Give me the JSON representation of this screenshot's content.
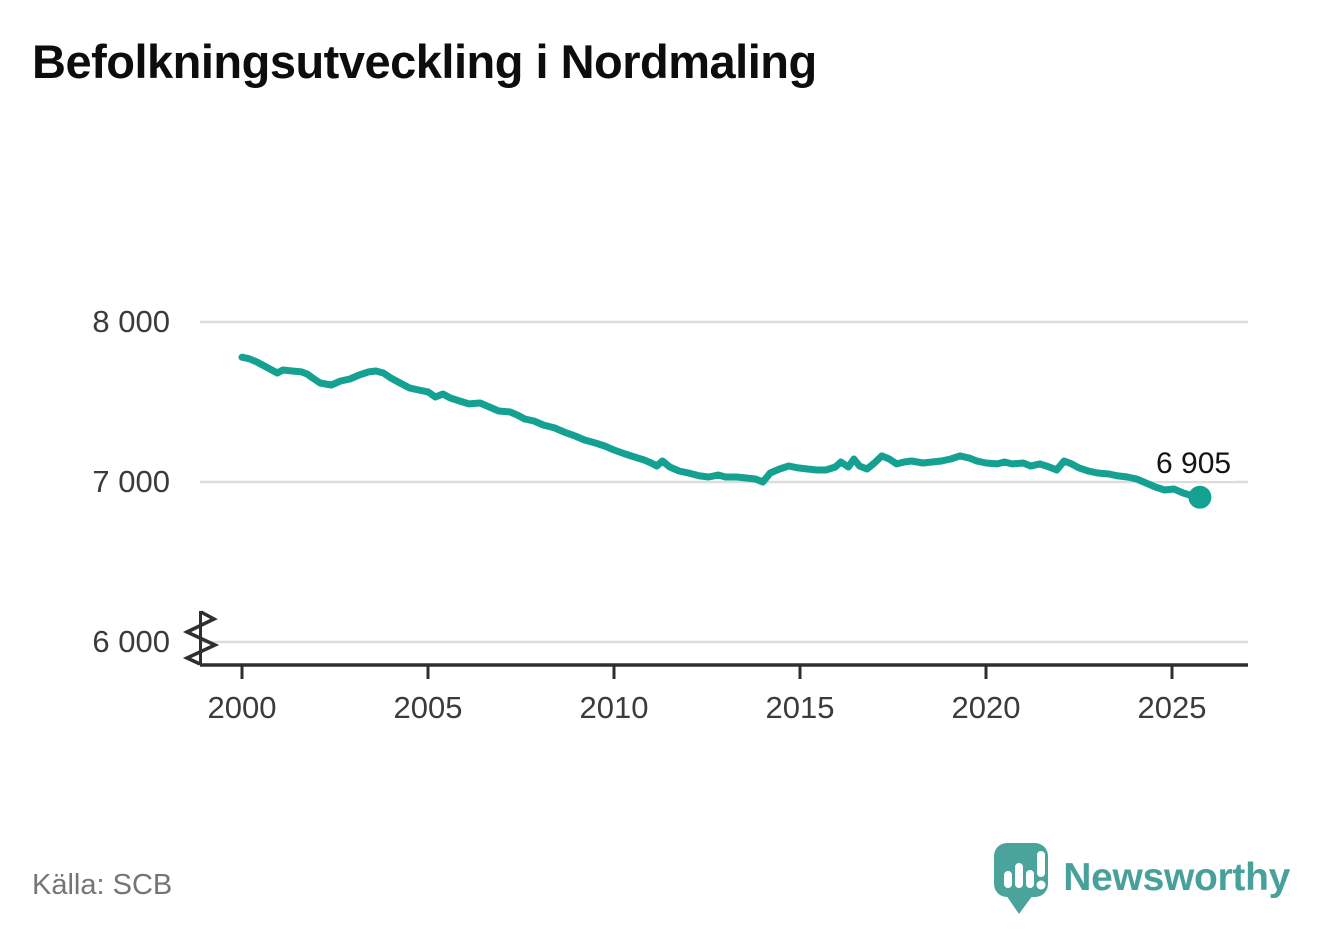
{
  "header": {
    "title": "Befolkningsutveckling i Nordmaling"
  },
  "footer": {
    "source": "Källa: SCB",
    "brand_name": "Newsworthy"
  },
  "annotation": {
    "last_value_label": "6 905"
  },
  "colors": {
    "line": "#14a192",
    "grid": "#dcdcdc",
    "axis": "#2f2f2f",
    "tick_label": "#3b3b3b",
    "source_text": "#757575",
    "brand": "#47a19a",
    "logo_bubble": "#4aa49b",
    "title_text": "#0d0d0d"
  },
  "chart_data": {
    "type": "line",
    "title": "Befolkningsutveckling i Nordmaling",
    "xlabel": "",
    "ylabel": "",
    "grid": "horizontal",
    "legend": "none",
    "axis_break_at_bottom": true,
    "xlim": [
      1998.9,
      2027.0
    ],
    "ylim_displayed": [
      6000,
      8000
    ],
    "x_ticks": [
      {
        "label": "2000",
        "year": 2000
      },
      {
        "label": "2005",
        "year": 2005
      },
      {
        "label": "2010",
        "year": 2010
      },
      {
        "label": "2015",
        "year": 2015
      },
      {
        "label": "2020",
        "year": 2020
      },
      {
        "label": "2025",
        "year": 2025
      }
    ],
    "y_ticks": [
      {
        "label": "8 000",
        "value": 8000
      },
      {
        "label": "7 000",
        "value": 7000
      },
      {
        "label": "6 000",
        "value": 6000
      }
    ],
    "series": [
      {
        "name": "Befolkning",
        "color": "#14a192",
        "end_value": 6905,
        "end_label": "6 905",
        "points": [
          [
            2000.0,
            7780
          ],
          [
            2000.2,
            7770
          ],
          [
            2000.4,
            7750
          ],
          [
            2000.75,
            7706
          ],
          [
            2000.95,
            7681
          ],
          [
            2001.1,
            7700
          ],
          [
            2001.35,
            7694
          ],
          [
            2001.6,
            7688
          ],
          [
            2001.75,
            7675
          ],
          [
            2001.9,
            7650
          ],
          [
            2002.1,
            7619
          ],
          [
            2002.4,
            7606
          ],
          [
            2002.65,
            7631
          ],
          [
            2002.9,
            7644
          ],
          [
            2003.15,
            7669
          ],
          [
            2003.4,
            7688
          ],
          [
            2003.6,
            7694
          ],
          [
            2003.8,
            7681
          ],
          [
            2004.0,
            7650
          ],
          [
            2004.25,
            7619
          ],
          [
            2004.5,
            7588
          ],
          [
            2004.75,
            7575
          ],
          [
            2005.0,
            7563
          ],
          [
            2005.2,
            7531
          ],
          [
            2005.4,
            7550
          ],
          [
            2005.6,
            7525
          ],
          [
            2005.85,
            7506
          ],
          [
            2006.1,
            7488
          ],
          [
            2006.4,
            7494
          ],
          [
            2006.65,
            7469
          ],
          [
            2006.9,
            7444
          ],
          [
            2007.2,
            7438
          ],
          [
            2007.4,
            7419
          ],
          [
            2007.6,
            7394
          ],
          [
            2007.85,
            7381
          ],
          [
            2008.1,
            7356
          ],
          [
            2008.4,
            7338
          ],
          [
            2008.65,
            7313
          ],
          [
            2008.95,
            7288
          ],
          [
            2009.2,
            7263
          ],
          [
            2009.5,
            7244
          ],
          [
            2009.75,
            7225
          ],
          [
            2010.0,
            7200
          ],
          [
            2010.3,
            7175
          ],
          [
            2010.55,
            7156
          ],
          [
            2010.8,
            7138
          ],
          [
            2011.0,
            7119
          ],
          [
            2011.15,
            7100
          ],
          [
            2011.3,
            7131
          ],
          [
            2011.5,
            7094
          ],
          [
            2011.75,
            7069
          ],
          [
            2012.0,
            7056
          ],
          [
            2012.3,
            7038
          ],
          [
            2012.55,
            7031
          ],
          [
            2012.8,
            7044
          ],
          [
            2013.0,
            7031
          ],
          [
            2013.3,
            7031
          ],
          [
            2013.55,
            7025
          ],
          [
            2013.8,
            7019
          ],
          [
            2014.0,
            7000
          ],
          [
            2014.2,
            7056
          ],
          [
            2014.45,
            7081
          ],
          [
            2014.7,
            7100
          ],
          [
            2014.95,
            7088
          ],
          [
            2015.2,
            7081
          ],
          [
            2015.45,
            7075
          ],
          [
            2015.7,
            7075
          ],
          [
            2015.95,
            7094
          ],
          [
            2016.1,
            7125
          ],
          [
            2016.3,
            7094
          ],
          [
            2016.45,
            7144
          ],
          [
            2016.6,
            7100
          ],
          [
            2016.8,
            7081
          ],
          [
            2017.0,
            7119
          ],
          [
            2017.2,
            7163
          ],
          [
            2017.4,
            7144
          ],
          [
            2017.6,
            7113
          ],
          [
            2017.8,
            7125
          ],
          [
            2018.0,
            7131
          ],
          [
            2018.3,
            7119
          ],
          [
            2018.55,
            7125
          ],
          [
            2018.8,
            7131
          ],
          [
            2019.05,
            7144
          ],
          [
            2019.3,
            7163
          ],
          [
            2019.55,
            7150
          ],
          [
            2019.75,
            7131
          ],
          [
            2020.0,
            7119
          ],
          [
            2020.3,
            7113
          ],
          [
            2020.5,
            7125
          ],
          [
            2020.7,
            7113
          ],
          [
            2021.0,
            7119
          ],
          [
            2021.2,
            7100
          ],
          [
            2021.45,
            7113
          ],
          [
            2021.7,
            7094
          ],
          [
            2021.9,
            7075
          ],
          [
            2022.1,
            7131
          ],
          [
            2022.3,
            7113
          ],
          [
            2022.5,
            7088
          ],
          [
            2022.75,
            7069
          ],
          [
            2023.0,
            7056
          ],
          [
            2023.3,
            7050
          ],
          [
            2023.55,
            7038
          ],
          [
            2023.8,
            7031
          ],
          [
            2024.05,
            7019
          ],
          [
            2024.3,
            6994
          ],
          [
            2024.55,
            6969
          ],
          [
            2024.8,
            6950
          ],
          [
            2025.05,
            6956
          ],
          [
            2025.3,
            6931
          ],
          [
            2025.55,
            6913
          ],
          [
            2025.75,
            6905
          ]
        ]
      }
    ]
  }
}
